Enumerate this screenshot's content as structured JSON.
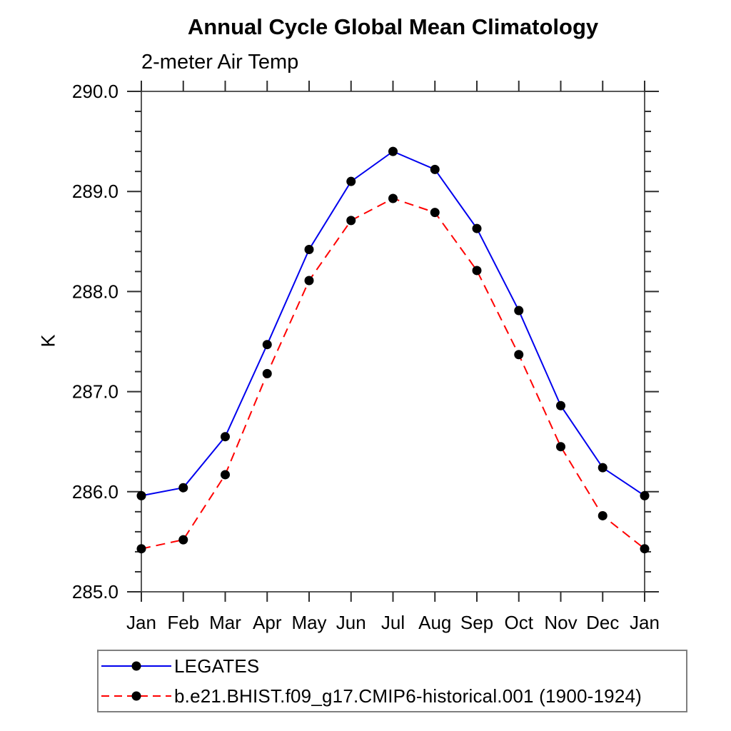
{
  "chart_data": {
    "type": "line",
    "title": "Annual Cycle Global Mean Climatology",
    "subtitle": "2-meter Air Temp",
    "xlabel": "",
    "ylabel": "K",
    "categories": [
      "Jan",
      "Feb",
      "Mar",
      "Apr",
      "May",
      "Jun",
      "Jul",
      "Aug",
      "Sep",
      "Oct",
      "Nov",
      "Dec",
      "Jan"
    ],
    "series": [
      {
        "name": "LEGATES",
        "color": "#0000ee",
        "line_style": "solid",
        "marker": "filled-circle",
        "marker_color": "#000000",
        "values": [
          285.96,
          286.04,
          286.55,
          287.47,
          288.42,
          289.1,
          289.4,
          289.22,
          288.63,
          287.81,
          286.86,
          286.24,
          285.96
        ]
      },
      {
        "name": "b.e21.BHIST.f09_g17.CMIP6-historical.001 (1900-1924)",
        "color": "#ff0000",
        "line_style": "dashed",
        "marker": "filled-circle",
        "marker_color": "#000000",
        "values": [
          285.43,
          285.52,
          286.17,
          287.18,
          288.11,
          288.71,
          288.93,
          288.79,
          288.21,
          287.37,
          286.45,
          285.76,
          285.43
        ]
      }
    ],
    "ylim": [
      285.0,
      290.0
    ],
    "y_major_ticks": [
      285.0,
      286.0,
      287.0,
      288.0,
      289.0,
      290.0
    ],
    "y_tick_labels": [
      "285.0",
      "286.0",
      "287.0",
      "288.0",
      "289.0",
      "290.0"
    ],
    "y_minor_step": 0.2,
    "grid": false,
    "legend_position": "bottom-left-box",
    "axis_color": "#2e2e2e"
  }
}
